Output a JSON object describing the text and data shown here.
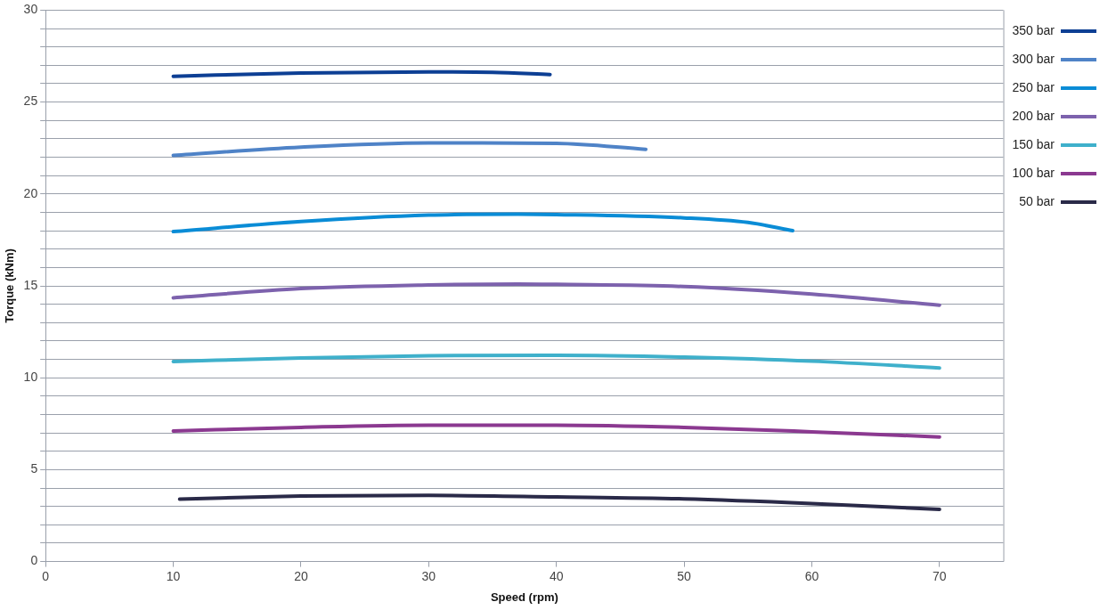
{
  "chart_data": {
    "type": "line",
    "xlabel": "Speed (rpm)",
    "ylabel": "Torque (kNm)",
    "xlim": [
      0,
      75
    ],
    "xticks": [
      0,
      10,
      20,
      30,
      40,
      50,
      60,
      70
    ],
    "ylim": [
      0,
      30
    ],
    "yticks": [
      0,
      {
        "value": 1,
        "label": null
      },
      {
        "value": 2,
        "label": null
      },
      {
        "value": 3,
        "label": null
      },
      {
        "value": 4,
        "label": null
      },
      5,
      {
        "value": 6,
        "label": null
      },
      {
        "value": 7,
        "label": null
      },
      {
        "value": 8,
        "label": null
      },
      {
        "value": 9,
        "label": null
      },
      10,
      {
        "value": 11,
        "label": null
      },
      {
        "value": 12,
        "label": null
      },
      {
        "value": 13,
        "label": null
      },
      {
        "value": 14,
        "label": null
      },
      15,
      {
        "value": 16,
        "label": null
      },
      {
        "value": 17,
        "label": null
      },
      {
        "value": 18,
        "label": null
      },
      {
        "value": 19,
        "label": null
      },
      20,
      {
        "value": 21,
        "label": null
      },
      {
        "value": 22,
        "label": null
      },
      {
        "value": 23,
        "label": null
      },
      {
        "value": 24,
        "label": null
      },
      25,
      {
        "value": 26,
        "label": null
      },
      {
        "value": 27,
        "label": null
      },
      {
        "value": 28,
        "label": null
      },
      {
        "value": 29,
        "label": null
      },
      30
    ],
    "grid": "y",
    "legend": "top right",
    "marker": "none",
    "line_style": "solid",
    "series": [
      {
        "name": "350 bar",
        "color": "#0d3f94",
        "x": [
          10,
          20,
          30,
          35,
          39.5
        ],
        "values": [
          26.4,
          26.58,
          26.64,
          26.62,
          26.5
        ]
      },
      {
        "name": "300 bar",
        "color": "#4f83c7",
        "x": [
          10,
          20,
          30,
          40,
          47
        ],
        "values": [
          22.1,
          22.55,
          22.78,
          22.75,
          22.43
        ]
      },
      {
        "name": "250 bar",
        "color": "#0a8cd6",
        "x": [
          10,
          20,
          30,
          37,
          40,
          50,
          55,
          58.5
        ],
        "values": [
          17.95,
          18.5,
          18.85,
          18.9,
          18.88,
          18.7,
          18.45,
          18.0
        ]
      },
      {
        "name": "200 bar",
        "color": "#7d62ad",
        "x": [
          10,
          20,
          30,
          37,
          40,
          50,
          60,
          70
        ],
        "values": [
          14.35,
          14.85,
          15.05,
          15.1,
          15.08,
          14.96,
          14.55,
          13.95
        ]
      },
      {
        "name": "150 bar",
        "color": "#3fb0cb",
        "x": [
          10,
          20,
          30,
          40,
          50,
          60,
          70
        ],
        "values": [
          10.88,
          11.08,
          11.2,
          11.22,
          11.12,
          10.9,
          10.53
        ]
      },
      {
        "name": "100 bar",
        "color": "#8b3990",
        "x": [
          10,
          20,
          30,
          40,
          50,
          60,
          70
        ],
        "values": [
          7.1,
          7.3,
          7.42,
          7.42,
          7.3,
          7.06,
          6.78
        ]
      },
      {
        "name": "50 bar",
        "color": "#2a2a48",
        "x": [
          10.5,
          20,
          30,
          40,
          50,
          60,
          70
        ],
        "values": [
          3.4,
          3.56,
          3.6,
          3.52,
          3.41,
          3.16,
          2.84
        ]
      }
    ]
  }
}
